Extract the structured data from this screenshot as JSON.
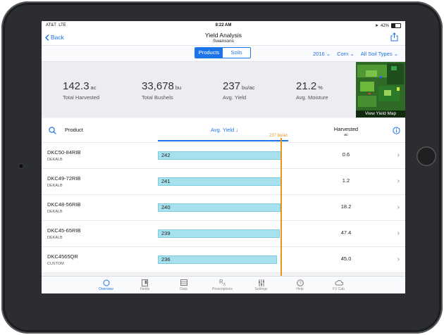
{
  "status": {
    "carrier": "AT&T",
    "network": "LTE",
    "time": "8:22 AM",
    "battery": "42%",
    "battery_level": 0.42
  },
  "nav": {
    "back_label": "Back",
    "title": "Yield Analysis",
    "subtitle": "Swansons"
  },
  "segments": {
    "products": "Products",
    "soils": "Soils",
    "selected": "Products"
  },
  "filters": {
    "year": "2016",
    "crop": "Corn",
    "soil": "All Soil Types"
  },
  "summary": {
    "harvested": {
      "value": "142.3",
      "unit": "ac",
      "label": "Total Harvested"
    },
    "bushels": {
      "value": "33,678",
      "unit": "bu",
      "label": "Total Bushels"
    },
    "yield": {
      "value": "237",
      "unit": "bu/ac",
      "label": "Avg. Yield"
    },
    "moisture": {
      "value": "21.2",
      "unit": "%",
      "label": "Avg. Moisture"
    },
    "map_label": "View Yield Map"
  },
  "table": {
    "col_product": "Product",
    "col_yield": "Avg. Yield",
    "col_harvested": "Harvested",
    "col_harvested_unit": "ac",
    "reference_label": "237 bu/ac",
    "rows": [
      {
        "name": "DKC50-84RIB",
        "brand": "DEKALB",
        "yield": "242",
        "harvested": "0.6"
      },
      {
        "name": "DKC49-72RIB",
        "brand": "DEKALB",
        "yield": "241",
        "harvested": "1.2"
      },
      {
        "name": "DKC48-56RIB",
        "brand": "DEKALB",
        "yield": "240",
        "harvested": "18.2"
      },
      {
        "name": "DKC45-65RIB",
        "brand": "DEKALB",
        "yield": "239",
        "harvested": "47.4"
      },
      {
        "name": "DKC4565QR",
        "brand": "CUSTOM",
        "yield": "236",
        "harvested": "45.0"
      }
    ]
  },
  "tabs": [
    {
      "label": "Overview",
      "icon": "circle-icon",
      "active": true
    },
    {
      "label": "Fields",
      "icon": "fields-icon",
      "active": false
    },
    {
      "label": "Data",
      "icon": "data-icon",
      "active": false
    },
    {
      "label": "Prescriptions",
      "icon": "rx-icon",
      "active": false
    },
    {
      "label": "Settings",
      "icon": "sliders-icon",
      "active": false
    },
    {
      "label": "Help",
      "icon": "help-icon",
      "active": false
    },
    {
      "label": "FV Cab",
      "icon": "cloud-icon",
      "active": false
    }
  ],
  "colors": {
    "accent": "#1d73e8",
    "bar": "#a8e1ee",
    "reference": "#e8941a"
  }
}
